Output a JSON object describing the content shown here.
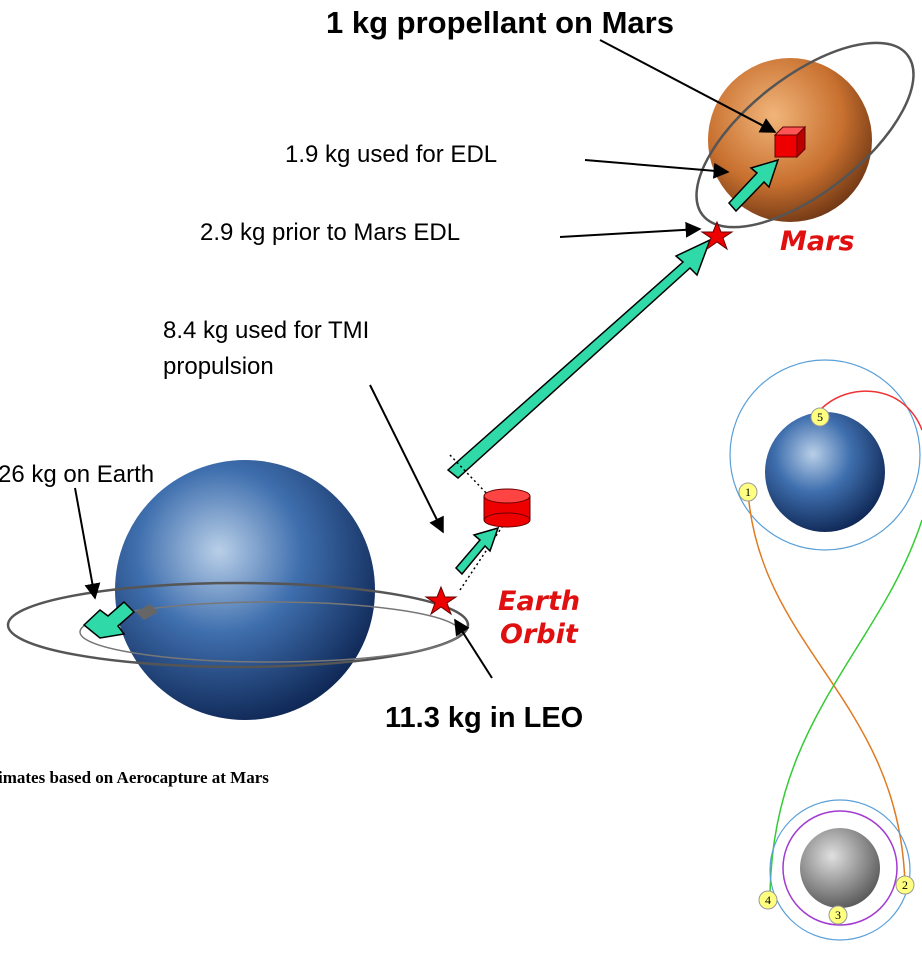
{
  "labels": {
    "title": "1 kg propellant on Mars",
    "edl": "1.9 kg used for EDL",
    "prior": "2.9 kg prior to Mars EDL",
    "mars": "Mars",
    "tmi": [
      "8.4 kg used for TMI",
      "propulsion"
    ],
    "earth_mass": "26 kg on Earth",
    "earth_orbit": [
      "Earth",
      "Orbit"
    ],
    "leo": "11.3 kg in LEO",
    "caption": "imates based on Aerocapture at Mars"
  },
  "trajectory_points": [
    "1",
    "2",
    "3",
    "4",
    "5"
  ]
}
